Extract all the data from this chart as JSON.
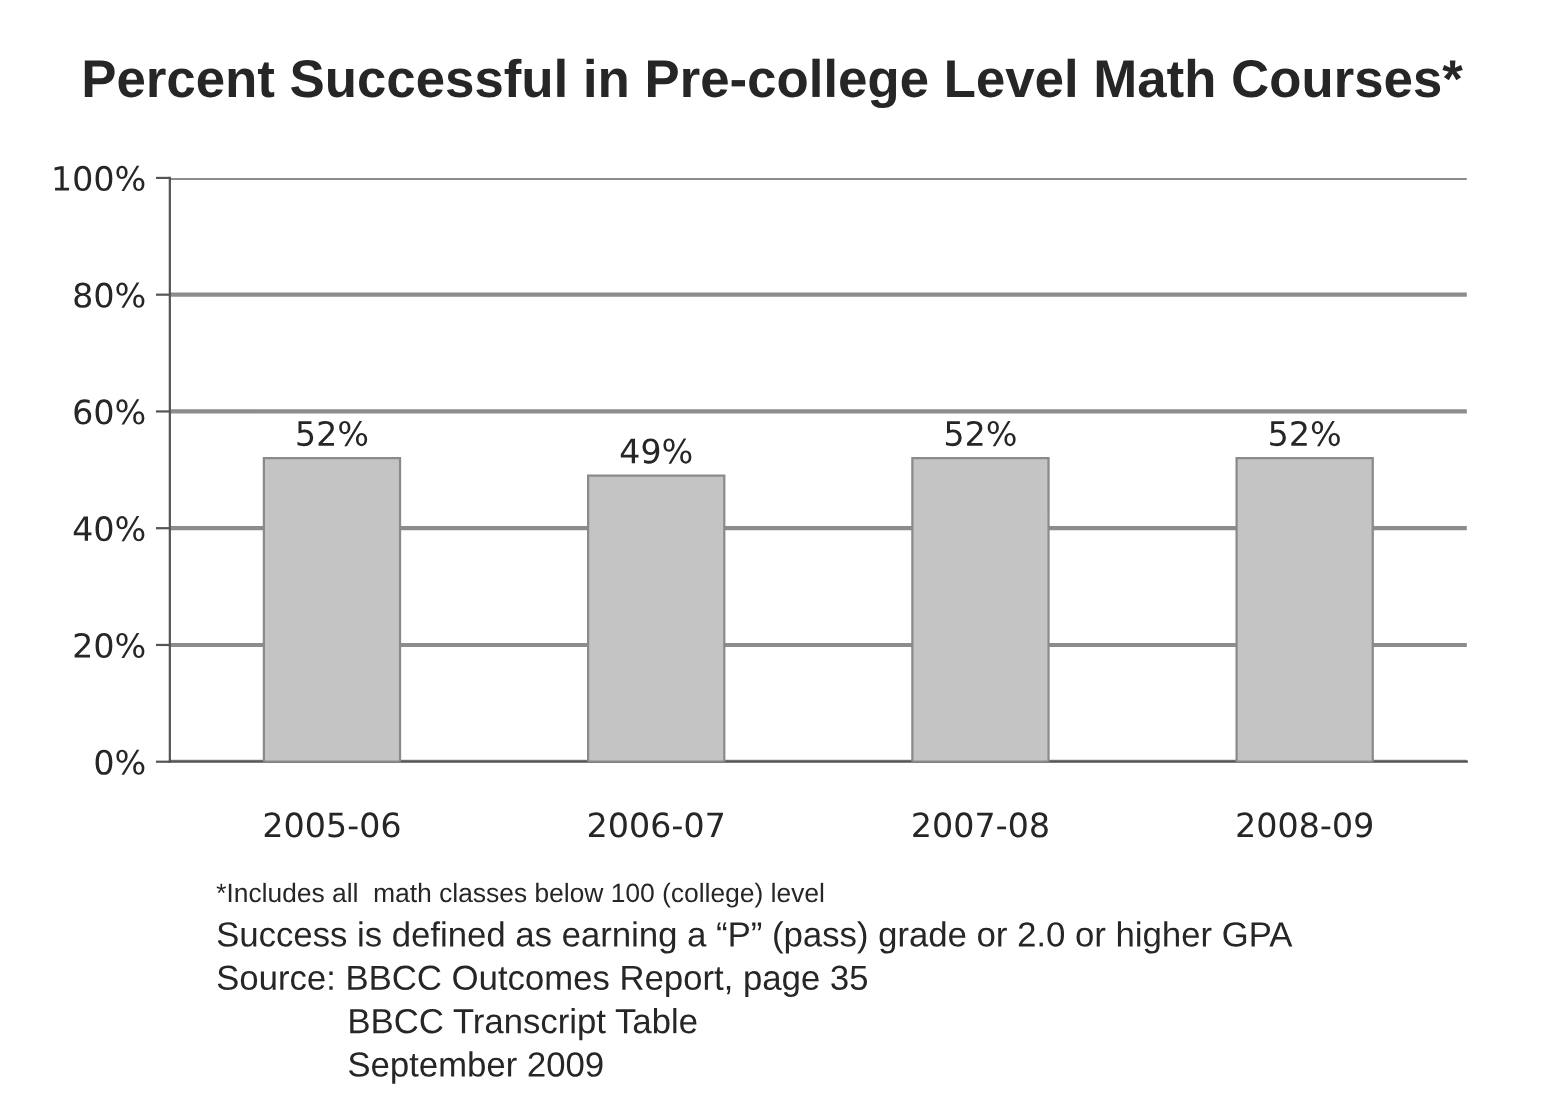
{
  "chart_data": {
    "type": "bar",
    "title": "Percent Successful in Pre-college Level Math Courses*",
    "categories": [
      "2005-06",
      "2006-07",
      "2007-08",
      "2008-09"
    ],
    "values": [
      52,
      49,
      52,
      52
    ],
    "value_labels": [
      "52%",
      "49%",
      "52%",
      "52%"
    ],
    "color": "#c4c4c4",
    "ylim": [
      0,
      100
    ],
    "yticks": [
      {
        "value": 0,
        "label": "0%"
      },
      {
        "value": 20,
        "label": "20%"
      },
      {
        "value": 40,
        "label": "40%"
      },
      {
        "value": 60,
        "label": "60%"
      },
      {
        "value": 80,
        "label": "80%"
      },
      {
        "value": 100,
        "label": "100%"
      }
    ],
    "grid": "y",
    "annotations": [
      "*Includes all  math classes below 100 (college) level",
      "Success is defined as earning a “P” (pass) grade or 2.0 or higher GPA",
      "Source: BBCC Outcomes Report, page 35",
      "BBCC Transcript Table",
      "September 2009"
    ]
  }
}
